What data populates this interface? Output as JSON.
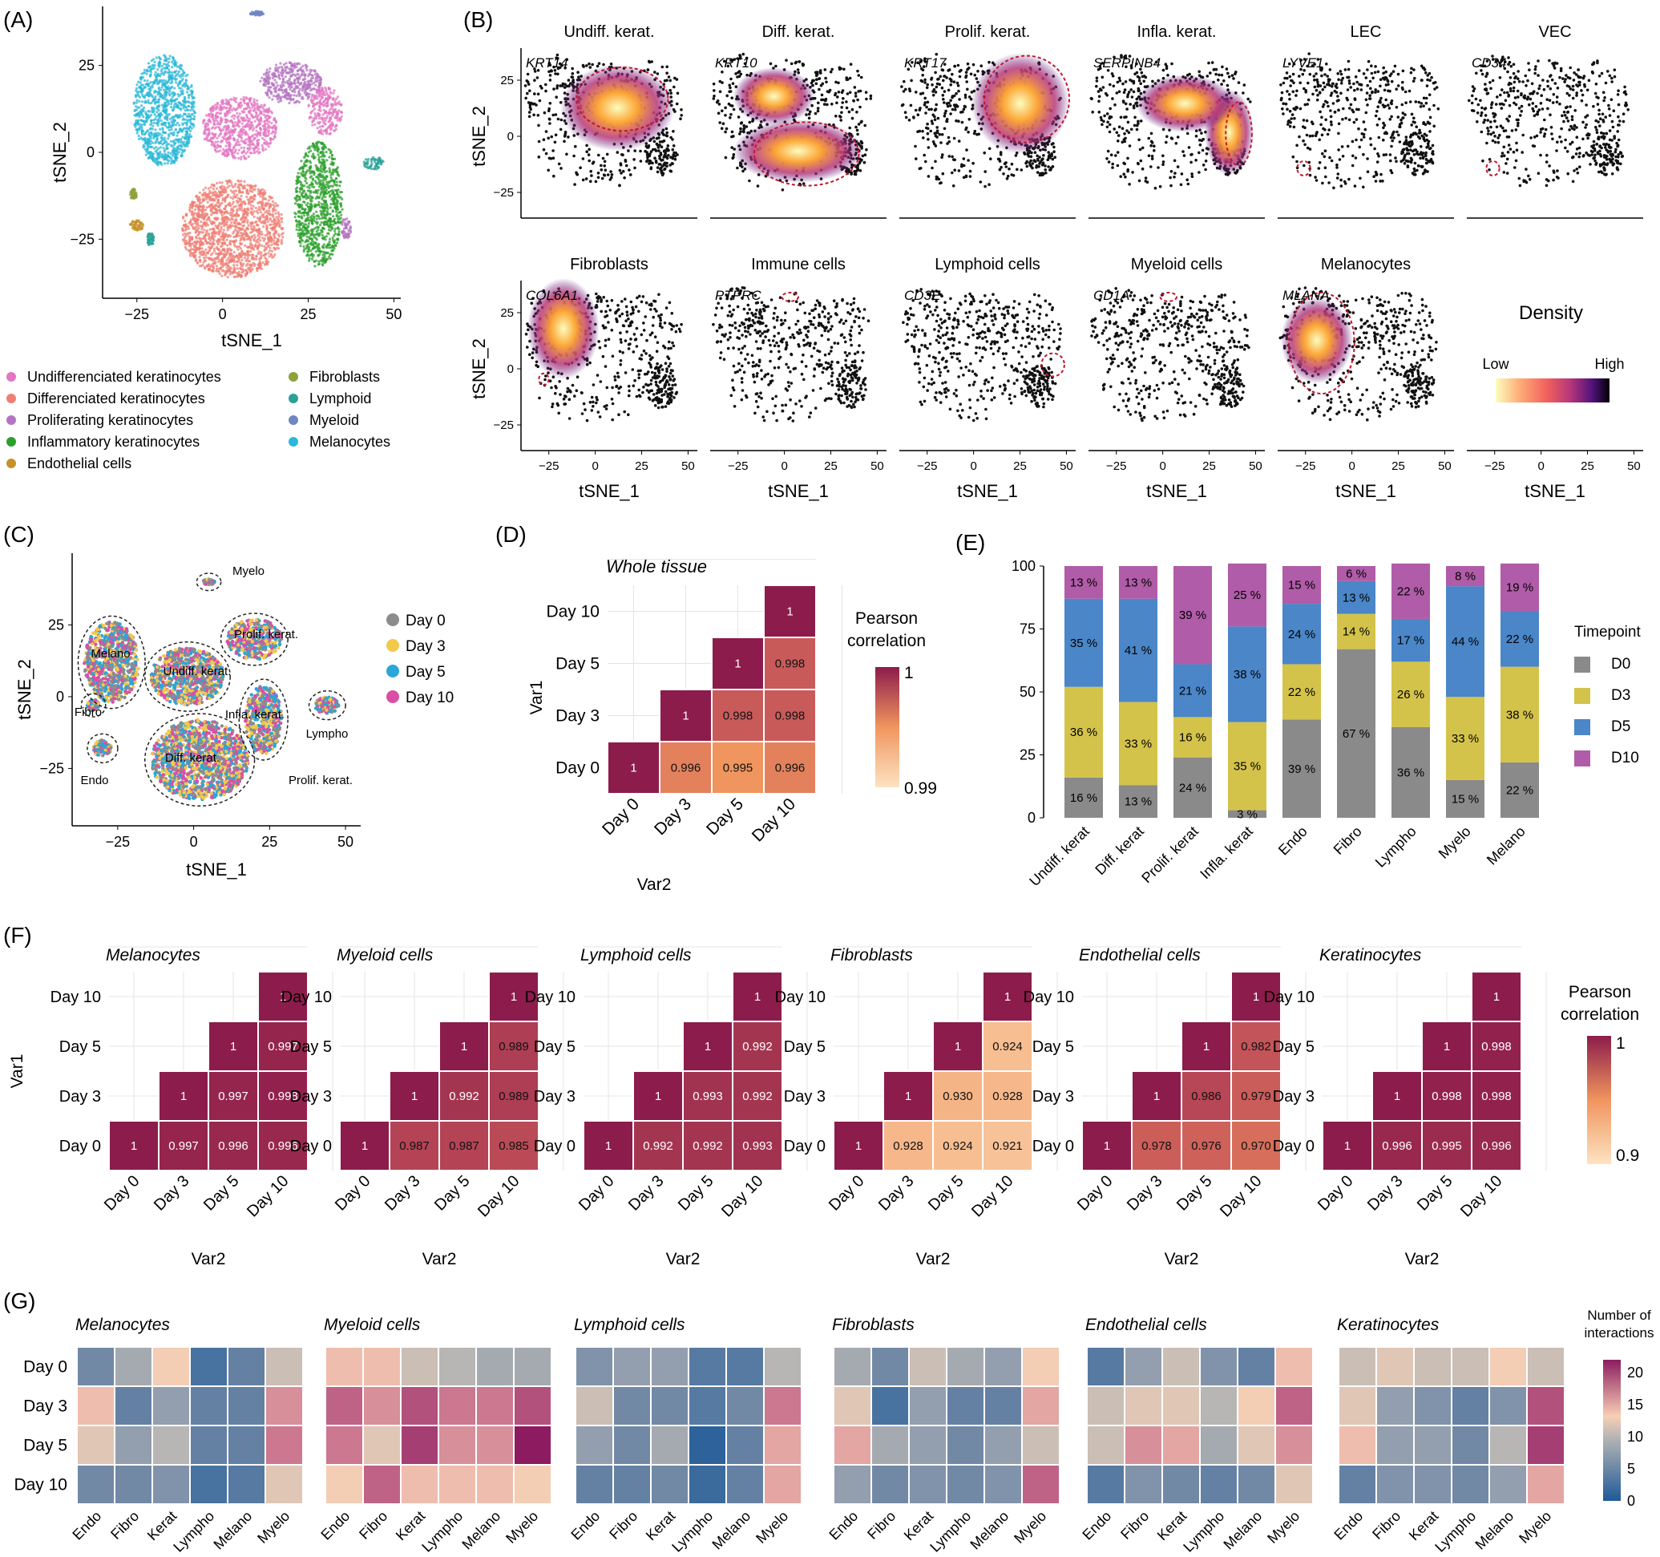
{
  "panel_labels": [
    "(A)",
    "(B)",
    "(C)",
    "(D)",
    "(E)",
    "(F)",
    "(G)"
  ],
  "chart_data": [
    {
      "id": "A",
      "type": "scatter",
      "xlabel": "tSNE_1",
      "ylabel": "tSNE_2",
      "xticks": [
        -25,
        0,
        25,
        50
      ],
      "yticks": [
        -25,
        0,
        25
      ],
      "xlim": [
        -35,
        52
      ],
      "ylim": [
        -42,
        42
      ],
      "legend": [
        {
          "name": "Undifferenciated keratinocytes",
          "color": "#e377c2"
        },
        {
          "name": "Differenciated keratinocytes",
          "color": "#ef7f74"
        },
        {
          "name": "Proliferating keratinocytes",
          "color": "#b574c2"
        },
        {
          "name": "Inflammatory keratinocytes",
          "color": "#2ca02c"
        },
        {
          "name": "Endothelial cells",
          "color": "#c8922a"
        },
        {
          "name": "Fibroblasts",
          "color": "#8da23a"
        },
        {
          "name": "Lymphoid",
          "color": "#2aa198"
        },
        {
          "name": "Myeloid",
          "color": "#6f86c2"
        },
        {
          "name": "Melanocytes",
          "color": "#2bb8d8"
        }
      ],
      "clusters": [
        {
          "color": "#2bb8d8",
          "cx": -17,
          "cy": 12,
          "rx": 9,
          "ry": 16
        },
        {
          "color": "#e377c2",
          "cx": 5,
          "cy": 7,
          "rx": 11,
          "ry": 9
        },
        {
          "color": "#b574c2",
          "cx": 20,
          "cy": 20,
          "rx": 9,
          "ry": 6
        },
        {
          "color": "#ef7f74",
          "cx": 3,
          "cy": -22,
          "rx": 15,
          "ry": 14
        },
        {
          "color": "#2ca02c",
          "cx": 28,
          "cy": -15,
          "rx": 7,
          "ry": 18
        },
        {
          "color": "#e377c2",
          "cx": 30,
          "cy": 12,
          "rx": 5,
          "ry": 7
        },
        {
          "color": "#2aa198",
          "cx": 44,
          "cy": -3,
          "rx": 3,
          "ry": 2
        },
        {
          "color": "#b574c2",
          "cx": 36,
          "cy": -22,
          "rx": 1.5,
          "ry": 3
        },
        {
          "color": "#c8922a",
          "cx": -25,
          "cy": -21,
          "rx": 2,
          "ry": 1.5
        },
        {
          "color": "#8da23a",
          "cx": -26,
          "cy": -12,
          "rx": 1,
          "ry": 1.5
        },
        {
          "color": "#6f86c2",
          "cx": 10,
          "cy": 40,
          "rx": 2,
          "ry": 0.6
        },
        {
          "color": "#2aa198",
          "cx": -21,
          "cy": -25,
          "rx": 1,
          "ry": 2
        }
      ]
    },
    {
      "id": "B",
      "type": "scatter",
      "xlabel": "tSNE_1",
      "ylabel": "tSNE_2",
      "xticks": [
        -25,
        0,
        25,
        50
      ],
      "yticks": [
        -25,
        0,
        25
      ],
      "legend_title": "Density",
      "legend_low": "Low",
      "legend_high": "High",
      "panels": [
        {
          "title": "Undiff. kerat.",
          "gene": "KRT14"
        },
        {
          "title": "Diff. kerat.",
          "gene": "KRT10"
        },
        {
          "title": "Prolif. kerat.",
          "gene": "KRT17"
        },
        {
          "title": "Infla. kerat.",
          "gene": "SERPINB4"
        },
        {
          "title": "LEC",
          "gene": "LYVE1"
        },
        {
          "title": "VEC",
          "gene": "CD34"
        },
        {
          "title": "Fibroblasts",
          "gene": "COL6A1"
        },
        {
          "title": "Immune cells",
          "gene": "PTPRC"
        },
        {
          "title": "Lymphoid cells",
          "gene": "CD3E"
        },
        {
          "title": "Myeloid cells",
          "gene": "CD1A"
        },
        {
          "title": "Melanocytes",
          "gene": "MLANA"
        }
      ]
    },
    {
      "id": "C",
      "type": "scatter",
      "xlabel": "tSNE_1",
      "ylabel": "tSNE_2",
      "xticks": [
        -25,
        0,
        25,
        50
      ],
      "yticks": [
        -25,
        0,
        25
      ],
      "legend": [
        {
          "name": "Day 0",
          "color": "#8c8c8c"
        },
        {
          "name": "Day 3",
          "color": "#f2c94c"
        },
        {
          "name": "Day 5",
          "color": "#2aa6d8"
        },
        {
          "name": "Day 10",
          "color": "#d94fa3"
        }
      ],
      "annotations": [
        "Myelo",
        "Melano",
        "Prolif. kerat.",
        "Undiff. kerat.",
        "Fibro",
        "Infla. kerat.",
        "Lympho",
        "Diff. kerat.",
        "Endo",
        "Prolif. kerat."
      ]
    },
    {
      "id": "D",
      "type": "heatmap",
      "title": "Whole tissue",
      "xlabel": "Var2",
      "ylabel": "Var1",
      "categories": [
        "Day 0",
        "Day 3",
        "Day 5",
        "Day 10"
      ],
      "legend_title": "Pearson correlation",
      "scale": [
        0.99,
        1
      ],
      "scale_labels": [
        "1",
        "0.99"
      ],
      "cells": [
        [
          1,
          null,
          null,
          null
        ],
        [
          0.996,
          1,
          null,
          null
        ],
        [
          0.995,
          0.998,
          1,
          null
        ],
        [
          0.996,
          0.998,
          0.998,
          1
        ]
      ],
      "cell_labels": [
        [
          "1",
          "",
          "",
          ""
        ],
        [
          "0.996",
          "1",
          "",
          ""
        ],
        [
          "0.995",
          "0.998",
          "1",
          ""
        ],
        [
          "0.996",
          "0.998",
          "0.998",
          "1"
        ]
      ]
    },
    {
      "id": "E",
      "type": "bar",
      "stacked": true,
      "categories": [
        "Undiff. kerat",
        "Diff. kerat",
        "Prolif. kerat",
        "Infla. kerat",
        "Endo",
        "Fibro",
        "Lympho",
        "Myelo",
        "Melano"
      ],
      "yticks": [
        0,
        25,
        50,
        75,
        100
      ],
      "ylim": [
        0,
        100
      ],
      "legend_title": "Timepoint",
      "series": [
        {
          "name": "D0",
          "color": "#8a8a8a",
          "values": [
            16,
            13,
            24,
            3,
            39,
            67,
            36,
            15,
            22
          ],
          "labels": [
            "16 %",
            "13 %",
            "24 %",
            "3 %",
            "39 %",
            "67 %",
            "36 %",
            "15 %",
            "22 %"
          ]
        },
        {
          "name": "D3",
          "color": "#d4c34a",
          "values": [
            36,
            33,
            16,
            35,
            22,
            14,
            26,
            33,
            38
          ],
          "labels": [
            "36 %",
            "33 %",
            "16 %",
            "35 %",
            "22 %",
            "14 %",
            "26 %",
            "33 %",
            "38 %"
          ]
        },
        {
          "name": "D5",
          "color": "#4a86c8",
          "values": [
            35,
            41,
            21,
            38,
            24,
            13,
            17,
            44,
            22
          ],
          "labels": [
            "35 %",
            "41 %",
            "21 %",
            "38 %",
            "24 %",
            "13 %",
            "17 %",
            "44 %",
            "22 %"
          ]
        },
        {
          "name": "D10",
          "color": "#b05ca8",
          "values": [
            13,
            13,
            39,
            25,
            15,
            6,
            22,
            8,
            19
          ],
          "labels": [
            "13 %",
            "13 %",
            "39 %",
            "25 %",
            "15 %",
            "6 %",
            "22 %",
            "8 %",
            "19 %"
          ]
        }
      ]
    },
    {
      "id": "F",
      "type": "heatmap",
      "xlabel": "Var2",
      "ylabel": "Var1",
      "categories": [
        "Day 0",
        "Day 3",
        "Day 5",
        "Day 10"
      ],
      "legend_title": "Pearson correlation",
      "scale": [
        0.9,
        1
      ],
      "scale_labels": [
        "1",
        "0.9"
      ],
      "panels": [
        {
          "title": "Melanocytes",
          "cells": [
            [
              1,
              null,
              null,
              null
            ],
            [
              0.997,
              1,
              null,
              null
            ],
            [
              0.996,
              0.997,
              1,
              null
            ],
            [
              0.996,
              0.998,
              0.997,
              1
            ]
          ],
          "cell_labels": [
            [
              "1",
              "",
              "",
              ""
            ],
            [
              "0.997",
              "1",
              "",
              ""
            ],
            [
              "0.996",
              "0.997",
              "1",
              ""
            ],
            [
              "0.996",
              "0.998",
              "0.997",
              "1"
            ]
          ]
        },
        {
          "title": "Myeloid cells",
          "cells": [
            [
              1,
              null,
              null,
              null
            ],
            [
              0.987,
              1,
              null,
              null
            ],
            [
              0.987,
              0.992,
              1,
              null
            ],
            [
              0.985,
              0.989,
              0.989,
              1
            ]
          ],
          "cell_labels": [
            [
              "1",
              "",
              "",
              ""
            ],
            [
              "0.987",
              "1",
              "",
              ""
            ],
            [
              "0.987",
              "0.992",
              "1",
              ""
            ],
            [
              "0.985",
              "0.989",
              "0.989",
              "1"
            ]
          ]
        },
        {
          "title": "Lymphoid cells",
          "cells": [
            [
              1,
              null,
              null,
              null
            ],
            [
              0.992,
              1,
              null,
              null
            ],
            [
              0.992,
              0.993,
              1,
              null
            ],
            [
              0.993,
              0.992,
              0.992,
              1
            ]
          ],
          "cell_labels": [
            [
              "1",
              "",
              "",
              ""
            ],
            [
              "0.992",
              "1",
              "",
              ""
            ],
            [
              "0.992",
              "0.993",
              "1",
              ""
            ],
            [
              "0.993",
              "0.992",
              "0.992",
              "1"
            ]
          ]
        },
        {
          "title": "Fibroblasts",
          "cells": [
            [
              1,
              null,
              null,
              null
            ],
            [
              0.928,
              1,
              null,
              null
            ],
            [
              0.924,
              0.93,
              1,
              null
            ],
            [
              0.921,
              0.928,
              0.924,
              1
            ]
          ],
          "cell_labels": [
            [
              "1",
              "",
              "",
              ""
            ],
            [
              "0.928",
              "1",
              "",
              ""
            ],
            [
              "0.924",
              "0.930",
              "1",
              ""
            ],
            [
              "0.921",
              "0.928",
              "0.924",
              "1"
            ]
          ]
        },
        {
          "title": "Endothelial cells",
          "cells": [
            [
              1,
              null,
              null,
              null
            ],
            [
              0.978,
              1,
              null,
              null
            ],
            [
              0.976,
              0.986,
              1,
              null
            ],
            [
              0.97,
              0.979,
              0.982,
              1
            ]
          ],
          "cell_labels": [
            [
              "1",
              "",
              "",
              ""
            ],
            [
              "0.978",
              "1",
              "",
              ""
            ],
            [
              "0.976",
              "0.986",
              "1",
              ""
            ],
            [
              "0.970",
              "0.979",
              "0.982",
              "1"
            ]
          ]
        },
        {
          "title": "Keratinocytes",
          "cells": [
            [
              1,
              null,
              null,
              null
            ],
            [
              0.996,
              1,
              null,
              null
            ],
            [
              0.995,
              0.998,
              1,
              null
            ],
            [
              0.996,
              0.998,
              0.998,
              1
            ]
          ],
          "cell_labels": [
            [
              "1",
              "",
              "",
              ""
            ],
            [
              "0.996",
              "1",
              "",
              ""
            ],
            [
              "0.995",
              "0.998",
              "1",
              ""
            ],
            [
              "0.996",
              "0.998",
              "0.998",
              "1"
            ]
          ]
        }
      ]
    },
    {
      "id": "G",
      "type": "heatmap",
      "rows": [
        "Day 0",
        "Day 3",
        "Day 5",
        "Day 10"
      ],
      "cols": [
        "Endo",
        "Fibro",
        "Kerat",
        "Lympho",
        "Melano",
        "Myelo"
      ],
      "legend_title": "Number of interactions",
      "scale": [
        0,
        22
      ],
      "scale_ticks": [
        0,
        5,
        10,
        15,
        20
      ],
      "panels": [
        {
          "title": "Melanocytes",
          "values": [
            [
              6,
              9,
              13,
              3,
              5,
              11
            ],
            [
              14,
              5,
              8,
              5,
              5,
              16
            ],
            [
              12,
              8,
              10,
              5,
              5,
              17
            ],
            [
              6,
              6,
              7,
              3,
              4,
              12
            ]
          ]
        },
        {
          "title": "Myeloid cells",
          "values": [
            [
              14,
              14,
              11,
              10,
              9,
              9
            ],
            [
              18,
              16,
              19,
              17,
              17,
              19
            ],
            [
              17,
              12,
              20,
              16,
              16,
              22
            ],
            [
              13,
              18,
              14,
              14,
              14,
              13
            ]
          ]
        },
        {
          "title": "Lymphoid cells",
          "values": [
            [
              7,
              8,
              8,
              4,
              4,
              10
            ],
            [
              11,
              6,
              6,
              4,
              6,
              17
            ],
            [
              8,
              6,
              9,
              1,
              5,
              15
            ],
            [
              5,
              5,
              6,
              2,
              5,
              15
            ]
          ]
        },
        {
          "title": "Fibroblasts",
          "values": [
            [
              9,
              6,
              11,
              9,
              8,
              13
            ],
            [
              12,
              3,
              8,
              5,
              5,
              15
            ],
            [
              15,
              9,
              8,
              6,
              8,
              11
            ],
            [
              8,
              6,
              7,
              6,
              7,
              18
            ]
          ]
        },
        {
          "title": "Endothelial cells",
          "values": [
            [
              4,
              8,
              11,
              7,
              5,
              14
            ],
            [
              11,
              12,
              12,
              10,
              13,
              18
            ],
            [
              11,
              16,
              15,
              9,
              12,
              16
            ],
            [
              4,
              7,
              6,
              5,
              6,
              12
            ]
          ]
        },
        {
          "title": "Keratinocytes",
          "values": [
            [
              11,
              12,
              11,
              11,
              13,
              11
            ],
            [
              12,
              8,
              7,
              5,
              7,
              19
            ],
            [
              14,
              8,
              8,
              6,
              10,
              20
            ],
            [
              5,
              7,
              7,
              6,
              8,
              15
            ]
          ]
        }
      ]
    }
  ]
}
